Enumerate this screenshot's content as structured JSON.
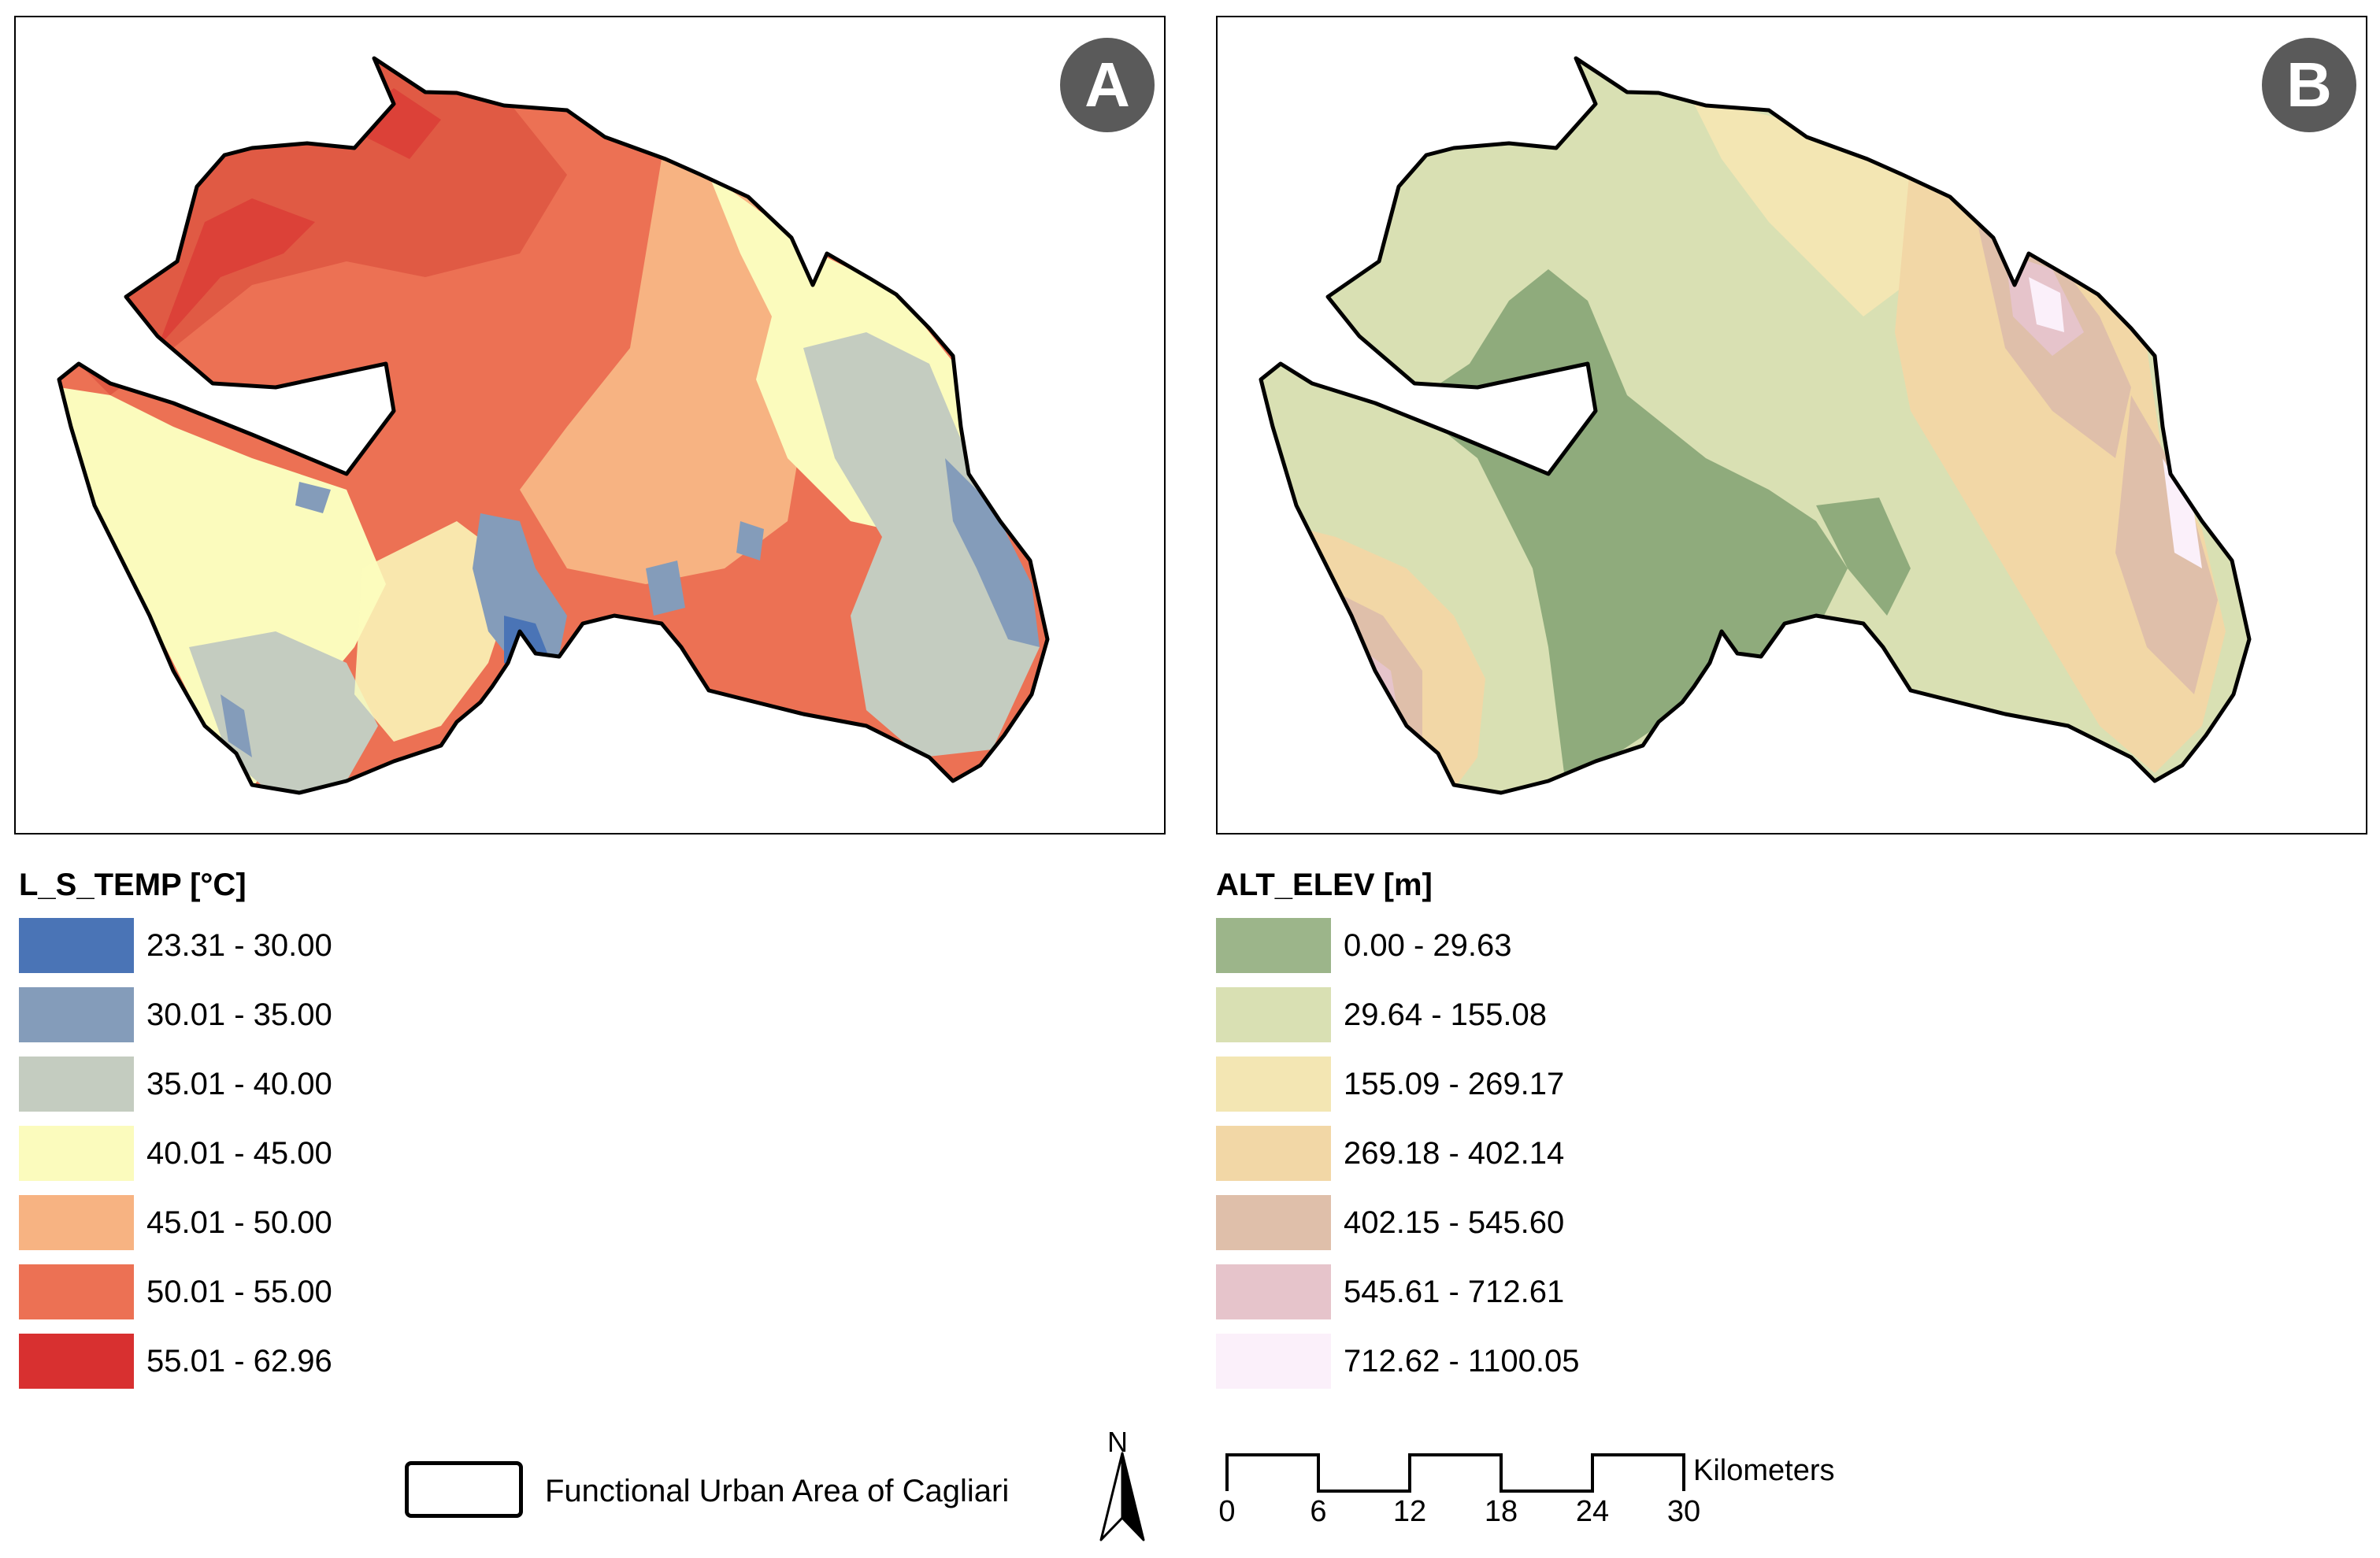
{
  "panels": {
    "a": {
      "badge": "A"
    },
    "b": {
      "badge": "B"
    }
  },
  "legend_temp": {
    "title": "L_S_TEMP [°C]",
    "items": [
      {
        "label": "23.31 - 30.00",
        "color": "#4a74b6"
      },
      {
        "label": "30.01 - 35.00",
        "color": "#849cba"
      },
      {
        "label": "35.01 - 40.00",
        "color": "#c4ccc0"
      },
      {
        "label": "40.01 - 45.00",
        "color": "#fbfbbd"
      },
      {
        "label": "45.01 - 50.00",
        "color": "#f7b382"
      },
      {
        "label": "50.01 - 55.00",
        "color": "#ec7154"
      },
      {
        "label": "55.01 - 62.96",
        "color": "#d83030"
      }
    ]
  },
  "legend_elev": {
    "title": "ALT_ELEV [m]",
    "items": [
      {
        "label": "0.00 - 29.63",
        "color": "#9cb58a"
      },
      {
        "label": "29.64 - 155.08",
        "color": "#d9e0b3"
      },
      {
        "label": "155.09 - 269.17",
        "color": "#f3e6b3"
      },
      {
        "label": "269.18 - 402.14",
        "color": "#f2d7a6"
      },
      {
        "label": "402.15 - 545.60",
        "color": "#dfbfaa"
      },
      {
        "label": "545.61 - 712.61",
        "color": "#e6c4cb"
      },
      {
        "label": "712.62 - 1100.05",
        "color": "#fbf0fa"
      }
    ]
  },
  "footer": {
    "boundary_label": "Functional Urban Area of Cagliari",
    "north_label": "N",
    "scale_unit": "Kilometers",
    "scale_ticks": [
      "0",
      "6",
      "12",
      "18",
      "24",
      "30"
    ]
  }
}
